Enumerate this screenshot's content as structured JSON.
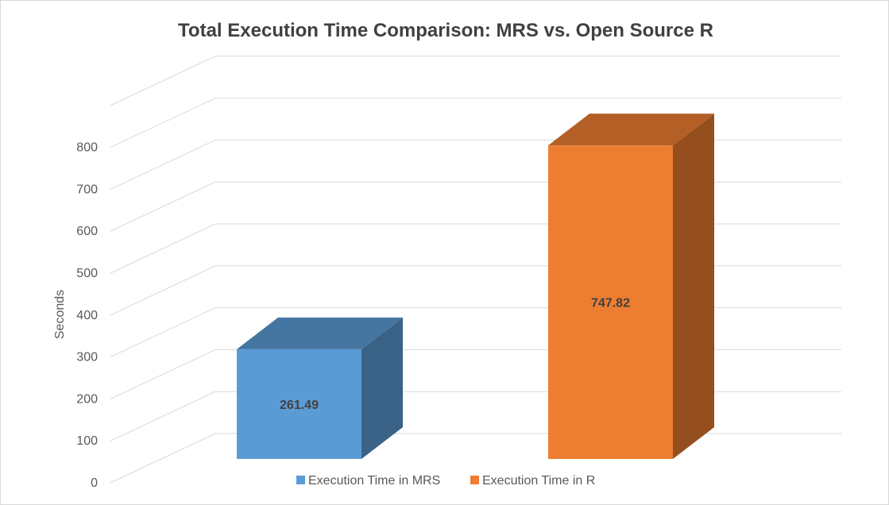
{
  "chart_data": {
    "type": "bar",
    "title": "Total Execution Time Comparison: MRS vs. Open Source R",
    "ylabel": "Seconds",
    "xlabel": "",
    "ylim": [
      0,
      800
    ],
    "y_ticks": [
      "0",
      "100",
      "200",
      "300",
      "400",
      "500",
      "600",
      "700",
      "800"
    ],
    "grid": true,
    "legend_position": "bottom",
    "three_d": true,
    "series": [
      {
        "name": "Execution Time in MRS",
        "values": [
          261.49
        ],
        "label": "261.49",
        "color": "#5b9bd5"
      },
      {
        "name": "Execution Time in R",
        "values": [
          747.82
        ],
        "label": "747.82",
        "color": "#ed7d31"
      }
    ]
  }
}
